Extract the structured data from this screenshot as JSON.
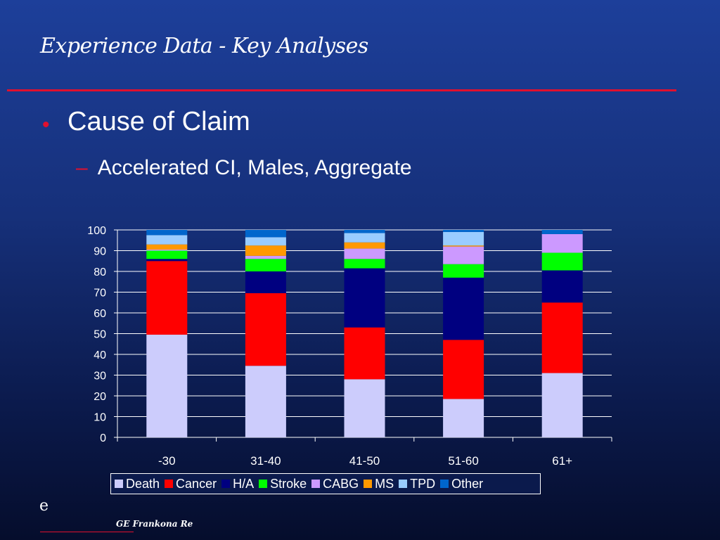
{
  "slide": {
    "title": "Experience Data - Key Analyses",
    "bullet": "Cause of Claim",
    "subbullet": "Accelerated CI, Males, Aggregate",
    "logo_letter": "e",
    "footer": "GE Frankona Re"
  },
  "colors": {
    "Death": "#ccccfc",
    "Cancer": "#ff0000",
    "H/A": "#000080",
    "Stroke": "#00ff00",
    "CABG": "#cc99ff",
    "MS": "#ff9900",
    "TPD": "#99ccff",
    "Other": "#0066cc"
  },
  "chart_data": {
    "type": "bar",
    "stacked": true,
    "categories": [
      "-30",
      "31-40",
      "41-50",
      "51-60",
      "61+"
    ],
    "ylim": [
      0,
      100
    ],
    "yticks": [
      0,
      10,
      20,
      30,
      40,
      50,
      60,
      70,
      80,
      90,
      100
    ],
    "grid": true,
    "legend_position": "bottom",
    "series": [
      {
        "name": "Death",
        "values": [
          49.5,
          34.5,
          28,
          18.5,
          31
        ]
      },
      {
        "name": "Cancer",
        "values": [
          35.5,
          35,
          25,
          28.5,
          34
        ]
      },
      {
        "name": "H/A",
        "values": [
          1,
          10.5,
          28.5,
          30,
          15.5
        ]
      },
      {
        "name": "Stroke",
        "values": [
          4,
          6,
          4.5,
          6.5,
          8.5
        ]
      },
      {
        "name": "CABG",
        "values": [
          0.5,
          1.5,
          5,
          8.5,
          9
        ]
      },
      {
        "name": "MS",
        "values": [
          2.5,
          5,
          3,
          0.5,
          0
        ]
      },
      {
        "name": "TPD",
        "values": [
          4.5,
          4,
          4.5,
          6.5,
          0
        ]
      },
      {
        "name": "Other",
        "values": [
          2.5,
          3.5,
          1.5,
          1,
          2
        ]
      }
    ]
  }
}
